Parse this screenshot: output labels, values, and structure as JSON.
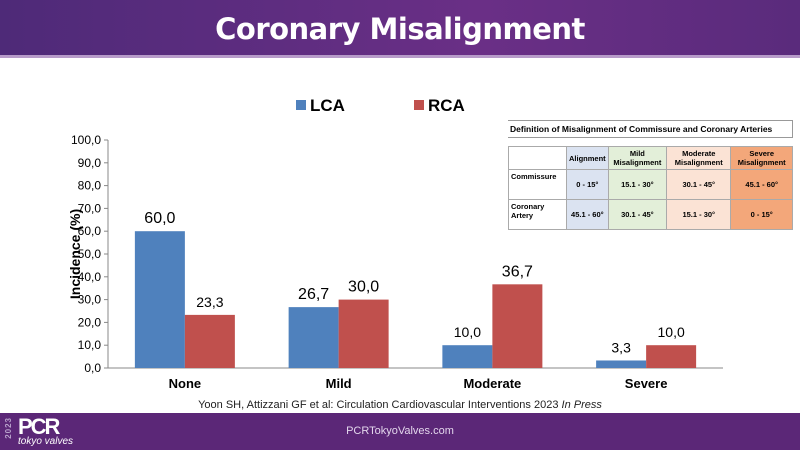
{
  "header": {
    "title": "Coronary Misalignment"
  },
  "citation": {
    "text": "Yoon SH, Attizzani GF et al: Circulation Cardiovascular Interventions 2023 ",
    "italic": "In Press"
  },
  "footer": {
    "site": "PCRTokyoValves.com",
    "logo_year": "2023",
    "logo_pcr": "PCR",
    "logo_sub": "tokyo valves"
  },
  "definition_table": {
    "title": "Definition of Misalignment of Commissure and Coronary Arteries",
    "columns": [
      "Alignment",
      "Mild Misalignment",
      "Moderate Misalignment",
      "Severe Misalignment"
    ],
    "rows": [
      {
        "label": "Commissure",
        "values": [
          "0 - 15°",
          "15.1 - 30°",
          "30.1 - 45°",
          "45.1 - 60°"
        ]
      },
      {
        "label": "Coronary Artery",
        "values": [
          "45.1 - 60°",
          "30.1 - 45°",
          "15.1 - 30°",
          "0 - 15°"
        ]
      }
    ]
  },
  "chart_data": {
    "type": "bar",
    "categories": [
      "None",
      "Mild",
      "Moderate",
      "Severe"
    ],
    "series": [
      {
        "name": "LCA",
        "color": "#4f81bd",
        "values": [
          60.0,
          26.7,
          10.0,
          3.3
        ],
        "labels": [
          "60,0",
          "26,7",
          "10,0",
          "3,3"
        ]
      },
      {
        "name": "RCA",
        "color": "#c0504d",
        "values": [
          23.3,
          30.0,
          36.7,
          10.0
        ],
        "labels": [
          "23,3",
          "30,0",
          "36,7",
          "10,0"
        ]
      }
    ],
    "ylabel": "Incidence (%)",
    "ylim": [
      0,
      100
    ],
    "yticks": [
      "0,0",
      "10,0",
      "20,0",
      "30,0",
      "40,0",
      "50,0",
      "60,0",
      "70,0",
      "80,0",
      "90,0",
      "100,0"
    ],
    "legend": "top-center",
    "grid": false
  }
}
